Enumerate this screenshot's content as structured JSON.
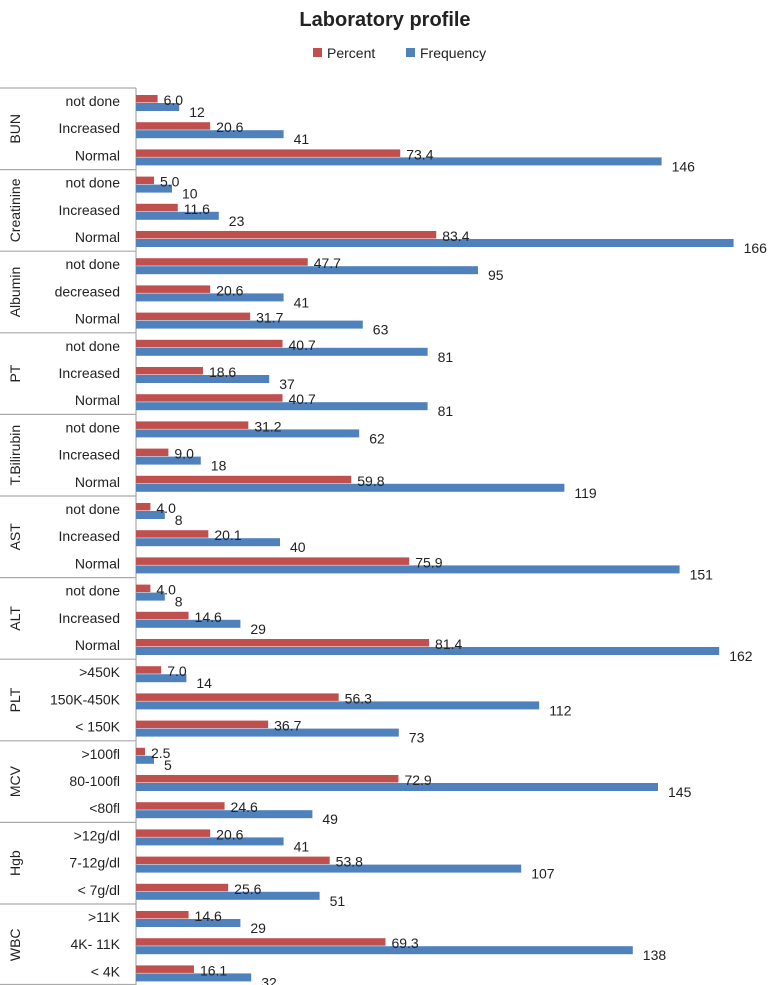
{
  "chart_data": {
    "type": "bar",
    "orientation": "horizontal",
    "title": "Laboratory profile",
    "legend": {
      "position": "top",
      "entries": [
        "Percent",
        "Frequency"
      ]
    },
    "colors": {
      "Percent": "#c0504d",
      "Frequency": "#4f81bd"
    },
    "groups": [
      {
        "name": "BUN",
        "categories": [
          "not done",
          "Increased",
          "Normal"
        ],
        "percent": [
          6.0,
          20.6,
          73.4
        ],
        "frequency": [
          12,
          41,
          146
        ]
      },
      {
        "name": "Creatinine",
        "categories": [
          "not done",
          "Increased",
          "Normal"
        ],
        "percent": [
          5.0,
          11.6,
          83.4
        ],
        "frequency": [
          10,
          23,
          166
        ]
      },
      {
        "name": "Albumin",
        "categories": [
          "not done",
          "decreased",
          "Normal"
        ],
        "percent": [
          47.7,
          20.6,
          31.7
        ],
        "frequency": [
          95,
          41,
          63
        ]
      },
      {
        "name": "PT",
        "categories": [
          "not done",
          "Increased",
          "Normal"
        ],
        "percent": [
          40.7,
          18.6,
          40.7
        ],
        "frequency": [
          81,
          37,
          81
        ]
      },
      {
        "name": "T.Bilirubin",
        "categories": [
          "not done",
          "Increased",
          "Normal"
        ],
        "percent": [
          31.2,
          9.0,
          59.8
        ],
        "frequency": [
          62,
          18,
          119
        ]
      },
      {
        "name": "AST",
        "categories": [
          "not done",
          "Increased",
          "Normal"
        ],
        "percent": [
          4.0,
          20.1,
          75.9
        ],
        "frequency": [
          8,
          40,
          151
        ]
      },
      {
        "name": "ALT",
        "categories": [
          "not done",
          "Increased",
          "Normal"
        ],
        "percent": [
          4.0,
          14.6,
          81.4
        ],
        "frequency": [
          8,
          29,
          162
        ]
      },
      {
        "name": "PLT",
        "categories": [
          ">450K",
          "150K-450K",
          "< 150K"
        ],
        "percent": [
          7.0,
          56.3,
          36.7
        ],
        "frequency": [
          14,
          112,
          73
        ]
      },
      {
        "name": "MCV",
        "categories": [
          ">100fl",
          "80-100fl",
          "<80fl"
        ],
        "percent": [
          2.5,
          72.9,
          24.6
        ],
        "frequency": [
          5,
          145,
          49
        ]
      },
      {
        "name": "Hgb",
        "categories": [
          ">12g/dl",
          "7-12g/dl",
          "< 7g/dl"
        ],
        "percent": [
          20.6,
          53.8,
          25.6
        ],
        "frequency": [
          41,
          107,
          51
        ]
      },
      {
        "name": "WBC",
        "categories": [
          ">11K",
          "4K- 11K",
          "< 4K"
        ],
        "percent": [
          14.6,
          69.3,
          16.1
        ],
        "frequency": [
          29,
          138,
          32
        ]
      }
    ],
    "xlim": [
      0,
      170
    ],
    "grid": false
  }
}
